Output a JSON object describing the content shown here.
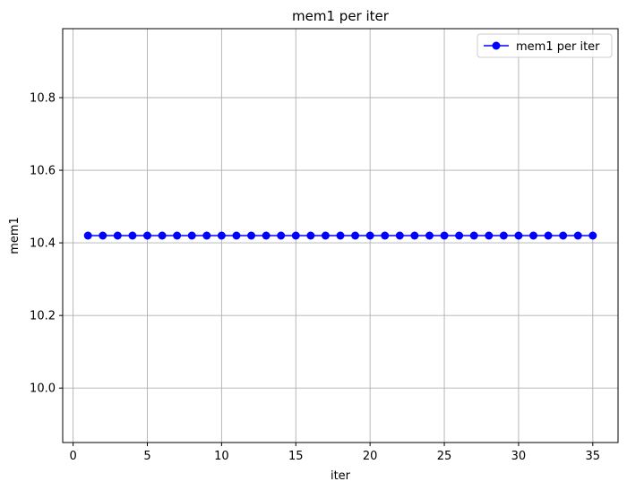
{
  "chart_data": {
    "type": "line",
    "title": "mem1 per iter",
    "xlabel": "iter",
    "ylabel": "mem1",
    "xlim": [
      -0.7,
      36.7
    ],
    "ylim": [
      9.85,
      10.99
    ],
    "x_ticks": [
      0,
      5,
      10,
      15,
      20,
      25,
      30,
      35
    ],
    "x_tick_labels": [
      "0",
      "5",
      "10",
      "15",
      "20",
      "25",
      "30",
      "35"
    ],
    "y_ticks": [
      10.0,
      10.2,
      10.4,
      10.6,
      10.8
    ],
    "y_tick_labels": [
      "10.0",
      "10.2",
      "10.4",
      "10.6",
      "10.8"
    ],
    "grid": true,
    "legend_position": "top-right",
    "series": [
      {
        "name": "mem1 per iter",
        "color": "#0000ff",
        "marker": "circle",
        "x": [
          1,
          2,
          3,
          4,
          5,
          6,
          7,
          8,
          9,
          10,
          11,
          12,
          13,
          14,
          15,
          16,
          17,
          18,
          19,
          20,
          21,
          22,
          23,
          24,
          25,
          26,
          27,
          28,
          29,
          30,
          31,
          32,
          33,
          34,
          35
        ],
        "y": [
          10.42,
          10.42,
          10.42,
          10.42,
          10.42,
          10.42,
          10.42,
          10.42,
          10.42,
          10.42,
          10.42,
          10.42,
          10.42,
          10.42,
          10.42,
          10.42,
          10.42,
          10.42,
          10.42,
          10.42,
          10.42,
          10.42,
          10.42,
          10.42,
          10.42,
          10.42,
          10.42,
          10.42,
          10.42,
          10.42,
          10.42,
          10.42,
          10.42,
          10.42,
          10.42
        ]
      }
    ]
  }
}
